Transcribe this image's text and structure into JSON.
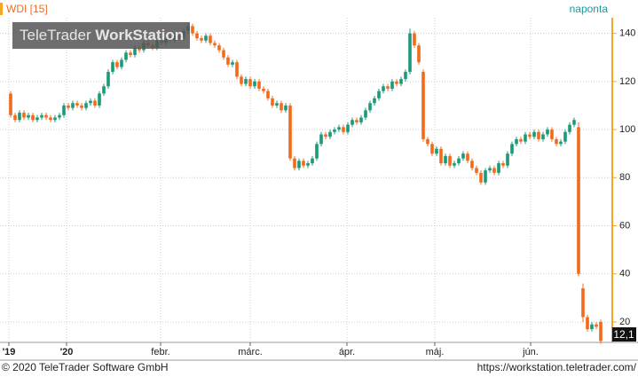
{
  "header": {
    "symbol": "WDI [15]",
    "interval": "naponta",
    "logo_light": "TeleTrader ",
    "logo_bold": "WorkStation"
  },
  "footer": {
    "copyright": "© 2020 TeleTrader Software GmbH",
    "url": "https://workstation.teletrader.com/"
  },
  "chart_data": {
    "type": "candlestick",
    "up_color": "#1a9a78",
    "down_color": "#f26b1d",
    "grid": true,
    "xlim": [
      -2.4,
      135.2
    ],
    "ylim": [
      11.5,
      146.5
    ],
    "yticks": [
      20,
      40,
      60,
      80,
      100,
      120,
      140
    ],
    "xticks": [
      {
        "value": -0.4,
        "label": "'19"
      },
      {
        "value": 12.6,
        "label": "'20"
      },
      {
        "value": 33.8,
        "label": "febr."
      },
      {
        "value": 54,
        "label": "márc."
      },
      {
        "value": 75.8,
        "label": "ápr."
      },
      {
        "value": 95.6,
        "label": "máj."
      },
      {
        "value": 117.2,
        "label": "jún."
      }
    ],
    "last_value_label": "12,1",
    "open": [
      115,
      106,
      104,
      107,
      105,
      106,
      104,
      105,
      106,
      105,
      104,
      105,
      106,
      110,
      109,
      111,
      110,
      109,
      111,
      112,
      110,
      115,
      118,
      124,
      128,
      126,
      129,
      132,
      131,
      134,
      133,
      136,
      135,
      134,
      137,
      136,
      138,
      137,
      139,
      138,
      141,
      143,
      140,
      138,
      137,
      139,
      136,
      135,
      133,
      130,
      127,
      128,
      122,
      119,
      121,
      118,
      120,
      117,
      116,
      113,
      110,
      111,
      108,
      110,
      88,
      84,
      87,
      85,
      86,
      88,
      94,
      98,
      97,
      99,
      100,
      101,
      99,
      102,
      104,
      103,
      105,
      108,
      111,
      113,
      116,
      118,
      117,
      120,
      119,
      121,
      124,
      140,
      135,
      124,
      96,
      94,
      90,
      92,
      86,
      89,
      85,
      86,
      88,
      90,
      87,
      84,
      82,
      78,
      83,
      84,
      82,
      86,
      85,
      90,
      94,
      96,
      95,
      98,
      97,
      99,
      96,
      98,
      100,
      96,
      94,
      95,
      99,
      102,
      101,
      34,
      22,
      17,
      19,
      20
    ],
    "high": [
      116,
      107,
      108,
      108,
      107,
      107,
      106,
      107,
      107,
      106,
      106,
      107,
      111,
      111,
      112,
      112,
      111,
      112,
      113,
      113,
      116,
      119,
      125,
      129,
      129,
      130,
      133,
      133,
      135,
      135,
      137,
      137,
      136,
      138,
      138,
      139,
      139,
      140,
      140,
      142,
      144,
      144,
      141,
      139,
      140,
      140,
      137,
      136,
      134,
      131,
      129,
      129,
      123,
      122,
      122,
      121,
      121,
      118,
      117,
      114,
      112,
      112,
      111,
      111,
      89,
      88,
      88,
      87,
      89,
      95,
      99,
      99,
      100,
      101,
      102,
      102,
      103,
      105,
      105,
      106,
      109,
      112,
      114,
      117,
      119,
      119,
      121,
      121,
      122,
      125,
      142,
      141,
      136,
      125,
      97,
      95,
      93,
      93,
      90,
      90,
      87,
      89,
      91,
      91,
      88,
      85,
      83,
      84,
      85,
      85,
      87,
      87,
      91,
      95,
      97,
      97,
      99,
      99,
      100,
      100,
      99,
      101,
      101,
      97,
      96,
      100,
      103,
      105,
      103,
      36,
      23,
      20,
      20,
      21
    ],
    "low": [
      105,
      103,
      103,
      104,
      104,
      103,
      103,
      104,
      104,
      103,
      103,
      104,
      105,
      108,
      108,
      109,
      108,
      108,
      110,
      109,
      109,
      114,
      117,
      123,
      125,
      125,
      128,
      130,
      130,
      132,
      132,
      134,
      133,
      133,
      135,
      135,
      136,
      136,
      137,
      137,
      140,
      139,
      137,
      136,
      136,
      135,
      134,
      132,
      129,
      126,
      126,
      121,
      118,
      118,
      117,
      117,
      116,
      115,
      112,
      109,
      109,
      107,
      107,
      87,
      83,
      83,
      84,
      84,
      85,
      87,
      93,
      96,
      96,
      98,
      99,
      98,
      98,
      101,
      102,
      102,
      104,
      107,
      110,
      112,
      115,
      116,
      116,
      118,
      118,
      120,
      123,
      134,
      127,
      95,
      93,
      89,
      89,
      85,
      85,
      84,
      84,
      85,
      87,
      86,
      83,
      81,
      77,
      77,
      82,
      81,
      81,
      84,
      84,
      89,
      93,
      94,
      94,
      96,
      96,
      95,
      95,
      97,
      95,
      93,
      93,
      94,
      98,
      101,
      39,
      20,
      16,
      16,
      17,
      11
    ],
    "close": [
      106,
      104,
      107,
      105,
      106,
      104,
      105,
      106,
      105,
      104,
      105,
      106,
      110,
      109,
      111,
      110,
      109,
      111,
      112,
      110,
      115,
      118,
      124,
      128,
      126,
      129,
      132,
      131,
      134,
      133,
      136,
      135,
      134,
      137,
      136,
      138,
      137,
      139,
      138,
      141,
      143,
      140,
      138,
      137,
      139,
      136,
      135,
      133,
      130,
      127,
      128,
      122,
      119,
      121,
      118,
      120,
      117,
      116,
      113,
      110,
      111,
      108,
      110,
      88,
      84,
      87,
      85,
      86,
      88,
      94,
      98,
      97,
      99,
      100,
      101,
      99,
      102,
      104,
      103,
      105,
      108,
      111,
      113,
      116,
      118,
      117,
      120,
      119,
      121,
      124,
      140,
      135,
      128,
      96,
      94,
      90,
      92,
      86,
      89,
      85,
      86,
      88,
      90,
      87,
      84,
      82,
      78,
      83,
      84,
      82,
      86,
      85,
      90,
      94,
      96,
      95,
      98,
      97,
      99,
      96,
      98,
      100,
      96,
      94,
      95,
      99,
      102,
      104,
      40,
      22,
      17,
      19,
      18,
      12.1
    ]
  }
}
